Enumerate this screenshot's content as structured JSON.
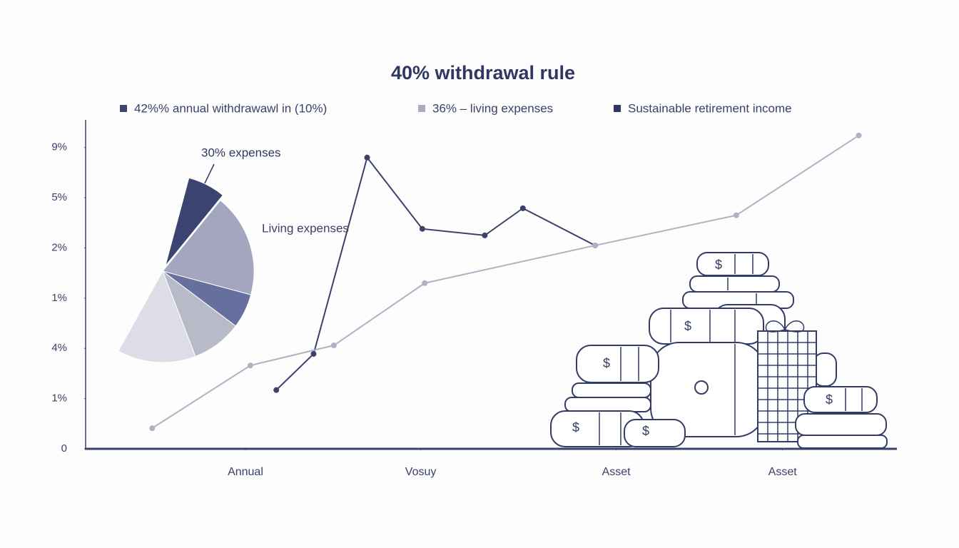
{
  "chart_data": [
    {
      "type": "line",
      "title": "40% withdrawal rule",
      "legend": [
        {
          "name": "42%% annual withdrawawl in (10%)",
          "color": "#3c4570"
        },
        {
          "name": "36% – living expenses",
          "color": "#a9abbe"
        },
        {
          "name": "Sustainable retirement income",
          "color": "#2f3762"
        }
      ],
      "series": [
        {
          "name": "42%% annual withdrawawl in (10%)",
          "color": "#3a426c",
          "x": [
            23.5,
            28.1,
            34.7,
            41.5,
            49.2,
            53.9,
            62.8
          ],
          "values": [
            1.17,
            1.89,
            5.8,
            4.38,
            4.25,
            4.79,
            4.05
          ]
        },
        {
          "name": "36% – living expenses",
          "color": "#b0b2c4",
          "x": [
            8.2,
            20.3,
            30.6,
            41.8,
            62.8,
            80.2,
            95.3
          ],
          "values": [
            0.41,
            1.66,
            2.06,
            3.3,
            4.05,
            4.65,
            6.24
          ]
        }
      ],
      "xlim": [
        0,
        100
      ],
      "xticks": [
        {
          "value": 19.7,
          "label": "Annual"
        },
        {
          "value": 41.3,
          "label": "Vosuy"
        },
        {
          "value": 65.4,
          "label": "Asset"
        },
        {
          "value": 85.9,
          "label": "Asset"
        }
      ],
      "ylim": [
        0,
        6.55
      ],
      "yticks": [
        {
          "value": 0,
          "label": "0"
        },
        {
          "value": 1,
          "label": "1%"
        },
        {
          "value": 2,
          "label": "4%"
        },
        {
          "value": 3,
          "label": "1%"
        },
        {
          "value": 4,
          "label": "2%"
        },
        {
          "value": 5,
          "label": "5%"
        },
        {
          "value": 6,
          "label": "9%"
        }
      ],
      "grid": false
    },
    {
      "type": "pie",
      "values": [
        6.7,
        18.3,
        6.1,
        8.9,
        13.9
      ],
      "colors": [
        "#3b4470",
        "#a4a6c0",
        "#66709f",
        "#b9bac8",
        "#dcdde6"
      ],
      "annotations": [
        "30% expenses",
        "Living expenses"
      ]
    }
  ],
  "illustration": {
    "symbol": "$"
  }
}
